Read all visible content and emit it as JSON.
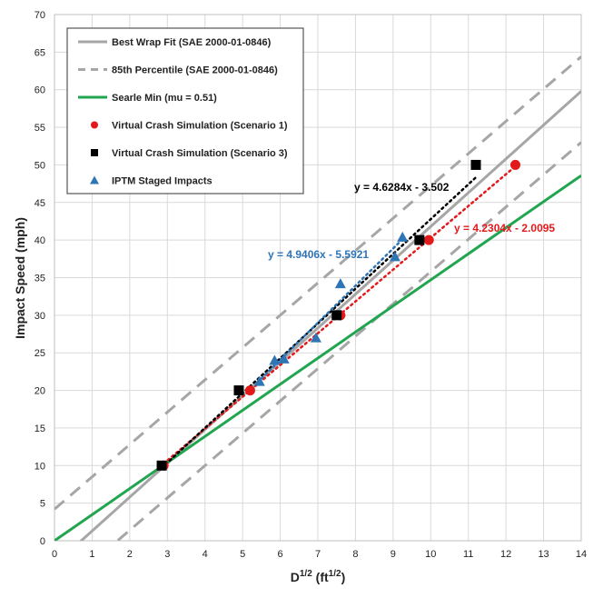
{
  "chart_data": {
    "type": "scatter",
    "xlabel_base": "D",
    "xlabel_sup1": "1/2",
    "xlabel_mid": " (ft",
    "xlabel_sup2": "1/2",
    "xlabel_end": ")",
    "ylabel": "Impact Speed (mph)",
    "xlim": [
      0,
      14
    ],
    "ylim": [
      0,
      70
    ],
    "x_ticks": [
      "0",
      "1",
      "2",
      "3",
      "4",
      "5",
      "6",
      "7",
      "8",
      "9",
      "10",
      "11",
      "12",
      "13",
      "14"
    ],
    "y_ticks": [
      "0",
      "5",
      "10",
      "15",
      "20",
      "25",
      "30",
      "35",
      "40",
      "45",
      "50",
      "55",
      "60",
      "65",
      "70"
    ],
    "grid": true,
    "legend_position": "top-left",
    "colors": {
      "best_fit": "#a6a6a6",
      "percentile": "#a6a6a6",
      "searle": "#22a550",
      "scenario1": "#e31a1c",
      "scenario3": "#000000",
      "iptm": "#2e75b6",
      "iptm_label": "#2e75b6",
      "scenario1_label": "#e31a1c",
      "scenario3_label": "#000000"
    },
    "lines": [
      {
        "name": "Best Wrap Fit (SAE 2000-01-0846)",
        "style": "solid",
        "slope": 4.5,
        "intercept": -3.2
      },
      {
        "name": "85th Percentile (SAE 2000-01-0846)",
        "style": "dashed",
        "upper": {
          "slope": 4.3,
          "intercept": 4.2
        },
        "lower": {
          "slope": 4.3,
          "intercept": -7.2
        }
      },
      {
        "name": "Searle Min (mu = 0.51)",
        "style": "solid",
        "slope": 3.47,
        "intercept": 0
      }
    ],
    "series": [
      {
        "name": "Virtual Crash Simulation (Scenario 1)",
        "marker": "circle",
        "x": [
          2.9,
          5.2,
          7.6,
          9.95,
          12.25
        ],
        "y": [
          10,
          20,
          30,
          40,
          50
        ],
        "trend": {
          "equation": "y = 4.2304x - 2.0095",
          "slope": 4.2304,
          "intercept": -2.0095,
          "x_range": [
            2.9,
            12.25
          ]
        }
      },
      {
        "name": "Virtual Crash Simulation (Scenario 3)",
        "marker": "square",
        "x": [
          2.85,
          4.9,
          7.5,
          9.7,
          11.2
        ],
        "y": [
          10,
          20,
          30,
          40,
          50
        ],
        "trend": {
          "equation": "y = 4.6284x - 3.502",
          "slope": 4.6284,
          "intercept": -3.502,
          "x_range": [
            2.85,
            11.2
          ]
        }
      },
      {
        "name": "IPTM Staged Impacts",
        "marker": "triangle",
        "x": [
          5.45,
          5.85,
          6.1,
          6.95,
          7.6,
          9.05,
          9.25
        ],
        "y": [
          21.2,
          24,
          24.2,
          27,
          34.2,
          37.8,
          40.4
        ],
        "trend": {
          "equation": "y = 4.9406x - 5.5921",
          "slope": 4.9406,
          "intercept": -5.5921,
          "x_range": [
            5.4,
            9.25
          ]
        }
      }
    ]
  }
}
